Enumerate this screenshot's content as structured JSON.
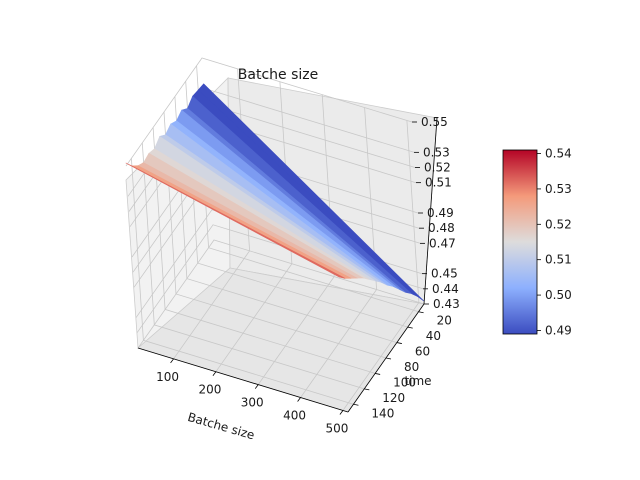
{
  "chart_data": {
    "type": "surface3d",
    "title": "Batche size",
    "xlabel": "Batche size",
    "ylabel": "time",
    "zlabel": "",
    "x_ticks": [
      100,
      200,
      300,
      400,
      500
    ],
    "y_ticks": [
      20,
      40,
      60,
      80,
      100,
      120,
      140
    ],
    "z_ticks": [
      "0.43",
      "0.44",
      "0.45",
      "0.47",
      "0.48",
      "0.49",
      "0.51",
      "0.52",
      "0.53",
      "0.55"
    ],
    "xlim": [
      16,
      512
    ],
    "ylim": [
      10,
      150
    ],
    "zlim": [
      0.43,
      0.55
    ],
    "batch_sizes": [
      16,
      512
    ],
    "time_levels": [
      10,
      20,
      30,
      40,
      50,
      60,
      70,
      80,
      90,
      100,
      110,
      120,
      130,
      140,
      150
    ],
    "z_at_batch_16": [
      0.533,
      0.534,
      0.535,
      0.532,
      0.536,
      0.534,
      0.537,
      0.535,
      0.539,
      0.536,
      0.538,
      0.537,
      0.54,
      0.545,
      0.552
    ],
    "z_at_batch_512": [
      0.432,
      0.44,
      0.447,
      0.453,
      0.46,
      0.467,
      0.473,
      0.48,
      0.486,
      0.492,
      0.498,
      0.503,
      0.508,
      0.513,
      0.519
    ],
    "colormap": "coolwarm",
    "colorbar": {
      "ticks": [
        "0.49",
        "0.50",
        "0.51",
        "0.52",
        "0.53",
        "0.54"
      ],
      "range": [
        0.489,
        0.541
      ]
    },
    "grid": true
  }
}
